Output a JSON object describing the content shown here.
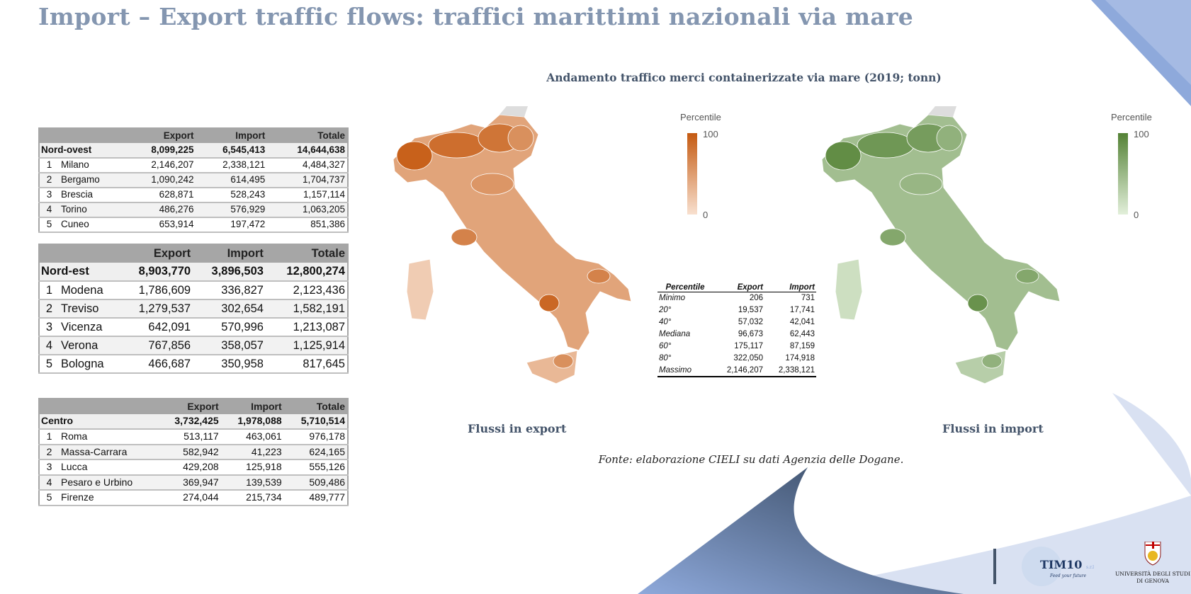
{
  "title": "Import – Export traffic flows: traffici marittimi nazionali via mare",
  "columns": [
    "Export",
    "Import",
    "Totale"
  ],
  "tables": [
    {
      "region": "Nord-ovest",
      "totals": [
        "8,099,225",
        "6,545,413",
        "14,644,638"
      ],
      "rows": [
        [
          "1",
          "Milano",
          "2,146,207",
          "2,338,121",
          "4,484,327"
        ],
        [
          "2",
          "Bergamo",
          "1,090,242",
          "614,495",
          "1,704,737"
        ],
        [
          "3",
          "Brescia",
          "628,871",
          "528,243",
          "1,157,114"
        ],
        [
          "4",
          "Torino",
          "486,276",
          "576,929",
          "1,063,205"
        ],
        [
          "5",
          "Cuneo",
          "653,914",
          "197,472",
          "851,386"
        ]
      ]
    },
    {
      "region": "Nord-est",
      "totals": [
        "8,903,770",
        "3,896,503",
        "12,800,274"
      ],
      "rows": [
        [
          "1",
          "Modena",
          "1,786,609",
          "336,827",
          "2,123,436"
        ],
        [
          "2",
          "Treviso",
          "1,279,537",
          "302,654",
          "1,582,191"
        ],
        [
          "3",
          "Vicenza",
          "642,091",
          "570,996",
          "1,213,087"
        ],
        [
          "4",
          "Verona",
          "767,856",
          "358,057",
          "1,125,914"
        ],
        [
          "5",
          "Bologna",
          "466,687",
          "350,958",
          "817,645"
        ]
      ]
    },
    {
      "region": "Centro",
      "totals": [
        "3,732,425",
        "1,978,088",
        "5,710,514"
      ],
      "rows": [
        [
          "1",
          "Roma",
          "513,117",
          "463,061",
          "976,178"
        ],
        [
          "2",
          "Massa-Carrara",
          "582,942",
          "41,223",
          "624,165"
        ],
        [
          "3",
          "Lucca",
          "429,208",
          "125,918",
          "555,126"
        ],
        [
          "4",
          "Pesaro e Urbino",
          "369,947",
          "139,539",
          "509,486"
        ],
        [
          "5",
          "Firenze",
          "274,044",
          "215,734",
          "489,777"
        ]
      ]
    }
  ],
  "chart_title": "Andamento traffico merci containerizzate via mare (2019; tonn)",
  "maps": [
    {
      "label": "Flussi in export",
      "legend_title": "Percentile",
      "legend_max": "100",
      "legend_min": "0",
      "color_high": "#c55a11",
      "color_low": "#f8e0cf"
    },
    {
      "label": "Flussi in import",
      "legend_title": "Percentile",
      "legend_max": "100",
      "legend_min": "0",
      "color_high": "#548235",
      "color_low": "#e2efda"
    }
  ],
  "percentile_table": {
    "headers": [
      "Percentile",
      "Export",
      "Import"
    ],
    "rows": [
      [
        "Minimo",
        "206",
        "731"
      ],
      [
        "20°",
        "19,537",
        "17,741"
      ],
      [
        "40°",
        "57,032",
        "42,041"
      ],
      [
        "Mediana",
        "96,673",
        "62,443"
      ],
      [
        "60°",
        "175,117",
        "87,159"
      ],
      [
        "80°",
        "322,050",
        "174,918"
      ],
      [
        "Massimo",
        "2,146,207",
        "2,338,121"
      ]
    ]
  },
  "source": "Fonte: elaborazione CIELI su dati Agenzia delle Dogane.",
  "logos": {
    "tim10": "TIM10",
    "tim10_suffix": "s.r.l",
    "tim10_tagline": "Feed your future",
    "unige_line1": "UNIVERSITÀ DEGLI STUDI",
    "unige_line2": "DI GENOVA"
  }
}
